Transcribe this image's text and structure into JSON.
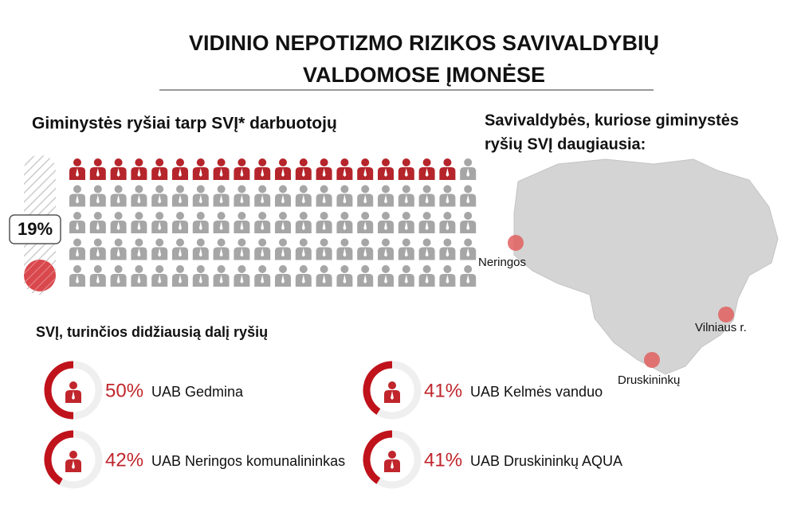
{
  "title": [
    "VIDINIO NEPOTIZMO RIZIKOS SAVIVALDYBIŲ",
    "VALDOMOSE ĮMONĖSE"
  ],
  "kinship": {
    "heading": "Giminystės ryšiai tarp SVĮ*  darbuotojų",
    "percent": 19,
    "percent_label": "19%"
  },
  "map": {
    "heading": [
      "Savivaldybės, kuriose giminystės",
      "ryšių SVĮ daugiausia:"
    ],
    "places": [
      "Neringos",
      "Vilniaus r.",
      "Druskininkų"
    ]
  },
  "companies": {
    "heading": "SVĮ, turinčios didžiausią dalį ryšių",
    "items": [
      {
        "value": 50,
        "value_label": "50%",
        "name": "UAB Gedmina"
      },
      {
        "value": 42,
        "value_label": "42%",
        "name": "UAB Neringos komunalininkas"
      },
      {
        "value": 41,
        "value_label": "41%",
        "name": "UAB Kelmės vanduo"
      },
      {
        "value": 41,
        "value_label": "41%",
        "name": "UAB Druskininkų AQUA"
      }
    ]
  }
}
